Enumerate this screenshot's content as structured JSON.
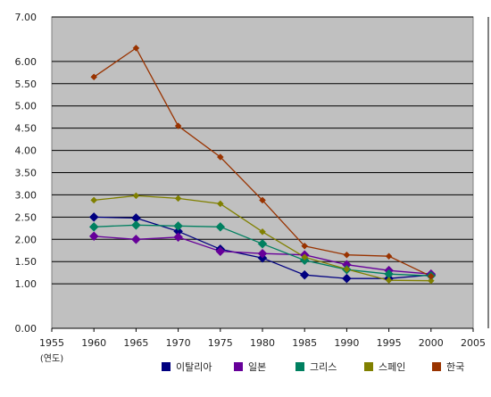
{
  "chart_data": {
    "type": "line",
    "x_unit_label": "(연도)",
    "xlim": [
      1955,
      2005
    ],
    "x_ticks": [
      1955,
      1960,
      1965,
      1970,
      1975,
      1980,
      1985,
      1990,
      1995,
      2000,
      2005
    ],
    "ylim": [
      0,
      7
    ],
    "y_ticks": [
      "0.00",
      "1.00",
      "1.50",
      "2.00",
      "2.50",
      "3.00",
      "3.50",
      "4.00",
      "4.50",
      "5.00",
      "5.50",
      "6.00",
      "7.00"
    ],
    "y_tick_values": [
      0,
      1,
      1.5,
      2,
      2.5,
      3,
      3.5,
      4,
      4.5,
      5,
      5.5,
      6,
      7
    ],
    "grid": true,
    "legend_position": "bottom",
    "x": [
      1960,
      1965,
      1970,
      1975,
      1980,
      1985,
      1990,
      1995,
      2000
    ],
    "series": [
      {
        "name": "이탈리아",
        "color": "#000080",
        "values": [
          2.5,
          2.48,
          2.18,
          1.78,
          1.58,
          1.2,
          1.12,
          1.12,
          1.2
        ]
      },
      {
        "name": "일본",
        "color": "#660099",
        "values": [
          2.07,
          2.0,
          2.05,
          1.73,
          1.68,
          1.65,
          1.43,
          1.3,
          1.22
        ]
      },
      {
        "name": "그리스",
        "color": "#008060",
        "values": [
          2.28,
          2.32,
          2.3,
          2.28,
          1.9,
          1.53,
          1.32,
          1.22,
          1.18
        ]
      },
      {
        "name": "스페인",
        "color": "#808000",
        "values": [
          2.88,
          2.98,
          2.92,
          2.8,
          2.17,
          1.6,
          1.33,
          1.08,
          1.07
        ]
      },
      {
        "name": "한국",
        "color": "#993300",
        "values": [
          5.65,
          6.3,
          4.55,
          3.85,
          2.88,
          1.85,
          1.65,
          1.62,
          1.17
        ]
      }
    ]
  }
}
